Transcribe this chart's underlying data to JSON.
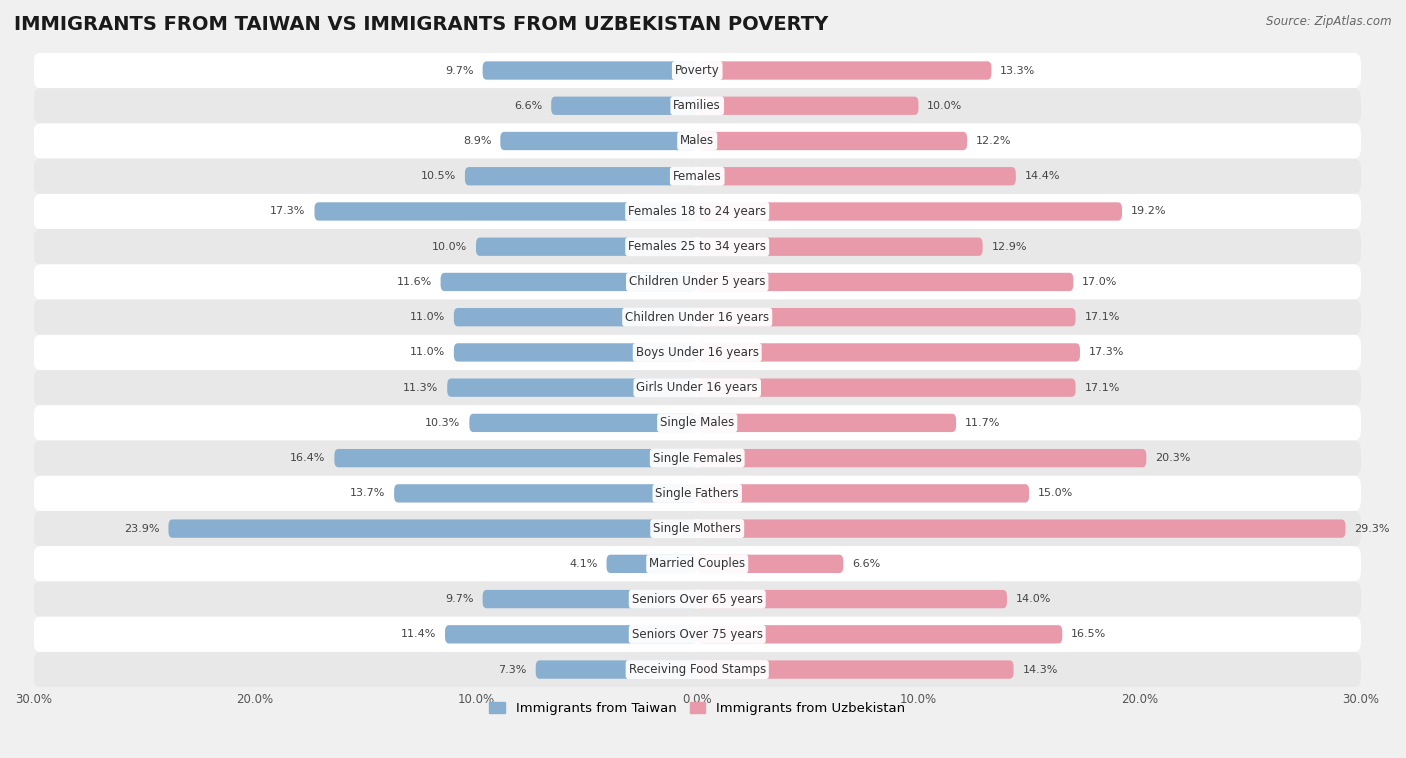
{
  "title": "IMMIGRANTS FROM TAIWAN VS IMMIGRANTS FROM UZBEKISTAN POVERTY",
  "source": "Source: ZipAtlas.com",
  "categories": [
    "Poverty",
    "Families",
    "Males",
    "Females",
    "Females 18 to 24 years",
    "Females 25 to 34 years",
    "Children Under 5 years",
    "Children Under 16 years",
    "Boys Under 16 years",
    "Girls Under 16 years",
    "Single Males",
    "Single Females",
    "Single Fathers",
    "Single Mothers",
    "Married Couples",
    "Seniors Over 65 years",
    "Seniors Over 75 years",
    "Receiving Food Stamps"
  ],
  "taiwan_values": [
    9.7,
    6.6,
    8.9,
    10.5,
    17.3,
    10.0,
    11.6,
    11.0,
    11.0,
    11.3,
    10.3,
    16.4,
    13.7,
    23.9,
    4.1,
    9.7,
    11.4,
    7.3
  ],
  "uzbekistan_values": [
    13.3,
    10.0,
    12.2,
    14.4,
    19.2,
    12.9,
    17.0,
    17.1,
    17.3,
    17.1,
    11.7,
    20.3,
    15.0,
    29.3,
    6.6,
    14.0,
    16.5,
    14.3
  ],
  "taiwan_color": "#88aed0",
  "uzbekistan_color": "#e899aa",
  "background_color": "#f0f0f0",
  "row_bg_white": "#ffffff",
  "row_bg_gray": "#e8e8e8",
  "xlim": 30.0,
  "legend_taiwan": "Immigrants from Taiwan",
  "legend_uzbekistan": "Immigrants from Uzbekistan",
  "title_fontsize": 14,
  "label_fontsize": 8.5,
  "value_fontsize": 8.0,
  "bar_height": 0.52,
  "source_fontsize": 8.5
}
